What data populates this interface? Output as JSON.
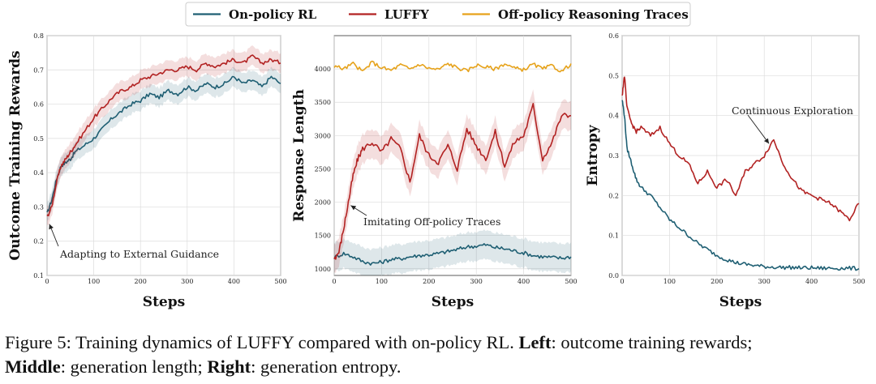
{
  "colors": {
    "onpolicy": "#1f5f73",
    "luffy": "#b22222",
    "offpolicy": "#e6a21a"
  },
  "legend": [
    "On-policy RL",
    "LUFFY",
    "Off-policy Reasoning Traces"
  ],
  "caption": {
    "fig": "Figure 5: Training dynamics of LUFFY compared with on-policy RL.",
    "left_label": "Left",
    "left_text": ": outcome training rewards;",
    "middle_label": "Middle",
    "middle_text": ": generation length;",
    "right_label": "Right",
    "right_text": ": generation entropy."
  },
  "chart_data": [
    {
      "type": "line",
      "xlabel": "Steps",
      "ylabel": "Outcome Training Rewards",
      "xlim": [
        0,
        500
      ],
      "ylim": [
        0.1,
        0.8
      ],
      "xticks": [
        "0",
        "100",
        "200",
        "300",
        "400",
        "500"
      ],
      "yticks": [
        "0.1",
        "0.2",
        "0.3",
        "0.4",
        "0.5",
        "0.6",
        "0.7",
        "0.8"
      ],
      "grid": true,
      "annotation": {
        "text": "Adapting to External Guidance",
        "target": [
          5,
          0.25
        ]
      },
      "series": [
        {
          "name": "On-policy RL",
          "x": [
            0,
            10,
            20,
            30,
            40,
            50,
            60,
            80,
            100,
            120,
            140,
            160,
            180,
            200,
            220,
            240,
            260,
            280,
            300,
            320,
            340,
            360,
            380,
            400,
            420,
            440,
            460,
            480,
            500
          ],
          "y": [
            0.28,
            0.32,
            0.38,
            0.42,
            0.43,
            0.44,
            0.46,
            0.48,
            0.5,
            0.53,
            0.56,
            0.58,
            0.6,
            0.61,
            0.63,
            0.62,
            0.64,
            0.63,
            0.65,
            0.64,
            0.66,
            0.65,
            0.66,
            0.68,
            0.66,
            0.67,
            0.65,
            0.68,
            0.66
          ]
        },
        {
          "name": "LUFFY",
          "x": [
            0,
            10,
            20,
            30,
            40,
            50,
            60,
            80,
            100,
            120,
            140,
            160,
            180,
            200,
            220,
            240,
            260,
            280,
            300,
            320,
            340,
            360,
            380,
            400,
            420,
            440,
            460,
            480,
            500
          ],
          "y": [
            0.27,
            0.3,
            0.37,
            0.42,
            0.44,
            0.46,
            0.48,
            0.52,
            0.56,
            0.59,
            0.62,
            0.64,
            0.65,
            0.67,
            0.68,
            0.69,
            0.7,
            0.7,
            0.71,
            0.7,
            0.72,
            0.71,
            0.72,
            0.73,
            0.72,
            0.74,
            0.72,
            0.73,
            0.72
          ]
        }
      ]
    },
    {
      "type": "line",
      "xlabel": "Steps",
      "ylabel": "Response Length",
      "xlim": [
        0,
        500
      ],
      "ylim": [
        900,
        4500
      ],
      "xticks": [
        "0",
        "100",
        "200",
        "300",
        "400",
        "500"
      ],
      "yticks": [
        "1000",
        "1500",
        "2000",
        "2500",
        "3000",
        "3500",
        "4000"
      ],
      "grid": true,
      "annotation": {
        "text": "Imitating Off-policy Traces",
        "target": [
          35,
          1950
        ]
      },
      "series": [
        {
          "name": "On-policy RL",
          "x": [
            0,
            20,
            40,
            60,
            80,
            100,
            120,
            140,
            160,
            180,
            200,
            220,
            240,
            260,
            280,
            300,
            320,
            340,
            360,
            380,
            400,
            420,
            440,
            460,
            480,
            500
          ],
          "y": [
            1170,
            1230,
            1180,
            1110,
            1080,
            1100,
            1140,
            1150,
            1180,
            1200,
            1210,
            1230,
            1260,
            1290,
            1330,
            1340,
            1360,
            1320,
            1300,
            1270,
            1240,
            1200,
            1180,
            1170,
            1160,
            1180
          ]
        },
        {
          "name": "LUFFY",
          "x": [
            0,
            10,
            20,
            30,
            40,
            50,
            60,
            80,
            100,
            120,
            140,
            160,
            180,
            200,
            220,
            240,
            260,
            280,
            300,
            320,
            340,
            360,
            380,
            400,
            420,
            440,
            460,
            480,
            500
          ],
          "y": [
            1150,
            1250,
            1600,
            2000,
            2400,
            2650,
            2800,
            2900,
            2750,
            2950,
            2800,
            2300,
            3000,
            2700,
            2600,
            2850,
            2500,
            3100,
            2850,
            2650,
            3050,
            2550,
            2900,
            3000,
            3450,
            2650,
            2900,
            3300,
            3300
          ]
        },
        {
          "name": "Off-policy Reasoning Traces",
          "x": [
            0,
            20,
            40,
            60,
            80,
            100,
            120,
            140,
            160,
            180,
            200,
            220,
            240,
            260,
            280,
            300,
            320,
            340,
            360,
            380,
            400,
            420,
            440,
            460,
            480,
            500
          ],
          "y": [
            4050,
            4000,
            4080,
            3960,
            4100,
            4020,
            3980,
            4060,
            4000,
            4070,
            4010,
            3990,
            4080,
            4020,
            3970,
            4060,
            4030,
            4000,
            4080,
            4010,
            3990,
            4070,
            4000,
            4050,
            3960,
            4080
          ]
        }
      ]
    },
    {
      "type": "line",
      "xlabel": "Steps",
      "ylabel": "Entropy",
      "xlim": [
        0,
        500
      ],
      "ylim": [
        0.0,
        0.6
      ],
      "xticks": [
        "0",
        "100",
        "200",
        "300",
        "400",
        "500"
      ],
      "yticks": [
        "0.0",
        "0.1",
        "0.2",
        "0.3",
        "0.4",
        "0.5",
        "0.6"
      ],
      "grid": true,
      "annotation": {
        "text": "Continuous Exploration",
        "target": [
          310,
          0.33
        ]
      },
      "series": [
        {
          "name": "On-policy RL",
          "x": [
            0,
            5,
            10,
            20,
            30,
            40,
            60,
            80,
            100,
            120,
            140,
            160,
            180,
            200,
            220,
            240,
            260,
            280,
            300,
            320,
            340,
            360,
            380,
            400,
            420,
            440,
            460,
            480,
            500
          ],
          "y": [
            0.44,
            0.4,
            0.32,
            0.28,
            0.24,
            0.22,
            0.2,
            0.17,
            0.14,
            0.12,
            0.1,
            0.08,
            0.065,
            0.05,
            0.04,
            0.032,
            0.028,
            0.025,
            0.022,
            0.021,
            0.02,
            0.02,
            0.019,
            0.019,
            0.018,
            0.018,
            0.018,
            0.018,
            0.017
          ]
        },
        {
          "name": "LUFFY",
          "x": [
            0,
            5,
            10,
            20,
            30,
            40,
            60,
            80,
            100,
            120,
            140,
            160,
            180,
            200,
            220,
            240,
            260,
            280,
            300,
            320,
            340,
            360,
            380,
            400,
            420,
            440,
            460,
            480,
            500
          ],
          "y": [
            0.45,
            0.5,
            0.42,
            0.38,
            0.36,
            0.37,
            0.35,
            0.37,
            0.33,
            0.3,
            0.28,
            0.23,
            0.26,
            0.22,
            0.24,
            0.2,
            0.26,
            0.28,
            0.3,
            0.34,
            0.28,
            0.24,
            0.21,
            0.2,
            0.19,
            0.18,
            0.16,
            0.14,
            0.18
          ]
        }
      ]
    }
  ]
}
